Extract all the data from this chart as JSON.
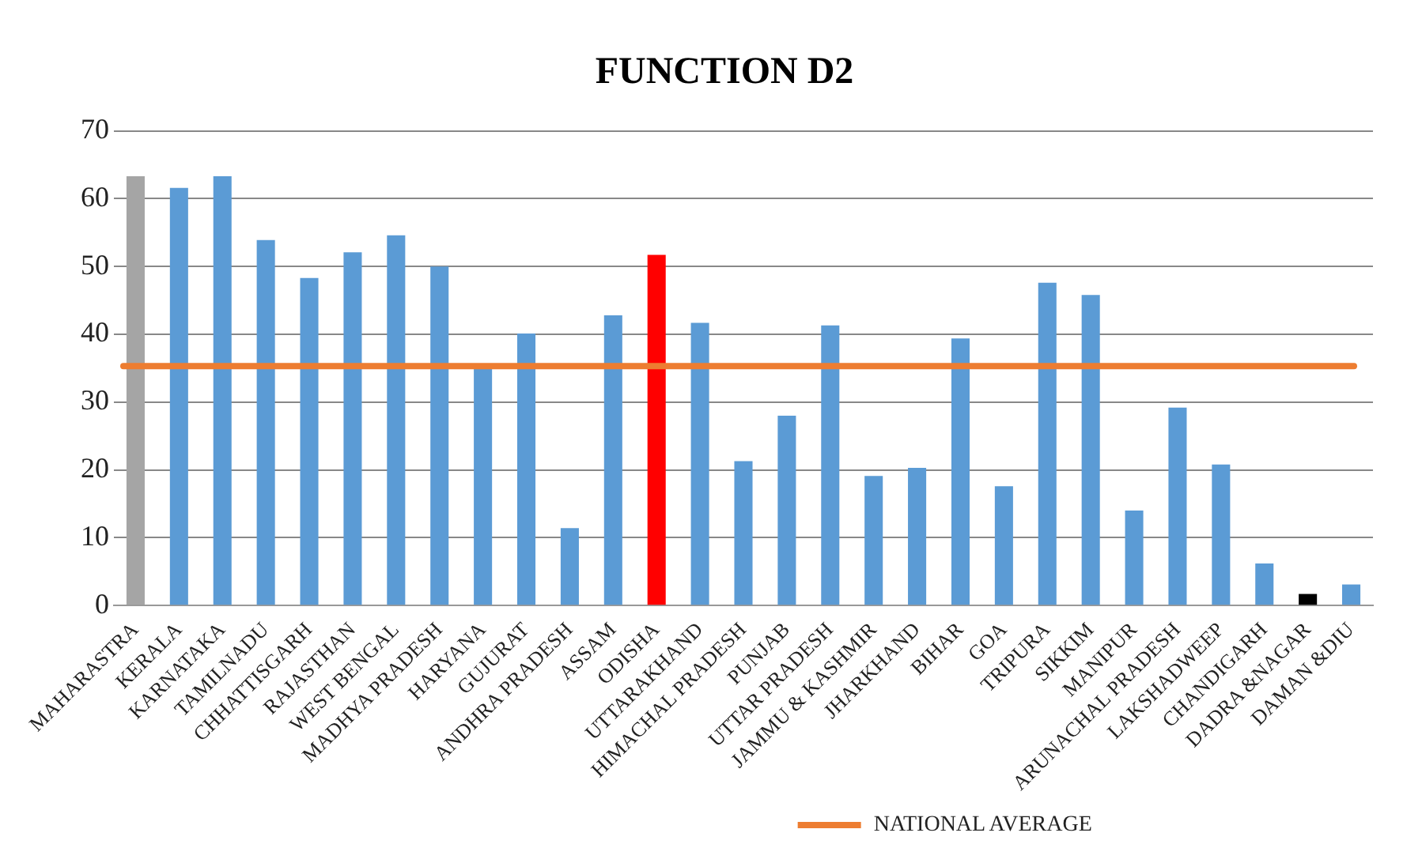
{
  "chart_data": {
    "type": "bar",
    "title": "FUNCTION D2",
    "categories": [
      "MAHARASTRA",
      "KERALA",
      "KARNATAKA",
      "TAMILNADU",
      "CHHATTISGARH",
      "RAJASTHAN",
      "WEST BENGAL",
      "MADHYA PRADESH",
      "HARYANA",
      "GUJURAT",
      "ANDHRA PRADESH",
      "ASSAM",
      "ODISHA",
      "UTTARAKHAND",
      "HIMACHAL PRADESH",
      "PUNJAB",
      "UTTAR PRADESH",
      "JAMMU & KASHMIR",
      "JHARKHAND",
      "BIHAR",
      "GOA",
      "TRIPURA",
      "SIKKIM",
      "MANIPUR",
      "ARUNACHAL PRADESH",
      "LAKSHADWEEP",
      "CHANDIGARH",
      "DADRA &NAGAR",
      "DAMAN &DIU"
    ],
    "values": [
      63.3,
      61.6,
      63.3,
      53.9,
      48.3,
      52.1,
      54.6,
      50,
      35,
      40.1,
      11.4,
      42.8,
      51.7,
      41.7,
      21.3,
      28,
      41.3,
      19.1,
      20.3,
      39.4,
      17.6,
      47.6,
      45.8,
      14,
      29.2,
      20.8,
      6.2,
      1.7,
      3.1
    ],
    "colors": [
      "#a5a5a5",
      "#5b9bd5",
      "#5b9bd5",
      "#5b9bd5",
      "#5b9bd5",
      "#5b9bd5",
      "#5b9bd5",
      "#5b9bd5",
      "#5b9bd5",
      "#5b9bd5",
      "#5b9bd5",
      "#5b9bd5",
      "#ff0000",
      "#5b9bd5",
      "#5b9bd5",
      "#5b9bd5",
      "#5b9bd5",
      "#5b9bd5",
      "#5b9bd5",
      "#5b9bd5",
      "#5b9bd5",
      "#5b9bd5",
      "#5b9bd5",
      "#5b9bd5",
      "#5b9bd5",
      "#5b9bd5",
      "#5b9bd5",
      "#000000",
      "#5b9bd5"
    ],
    "ylim": [
      0,
      70
    ],
    "yticks": [
      0,
      10,
      20,
      30,
      40,
      50,
      60,
      70
    ],
    "grid": "y",
    "legend": "bottom",
    "ref_lines": [
      {
        "axis": "y",
        "value": 35.3,
        "label": "NATIONAL AVERAGE",
        "color": "#ed7d31"
      }
    ]
  }
}
